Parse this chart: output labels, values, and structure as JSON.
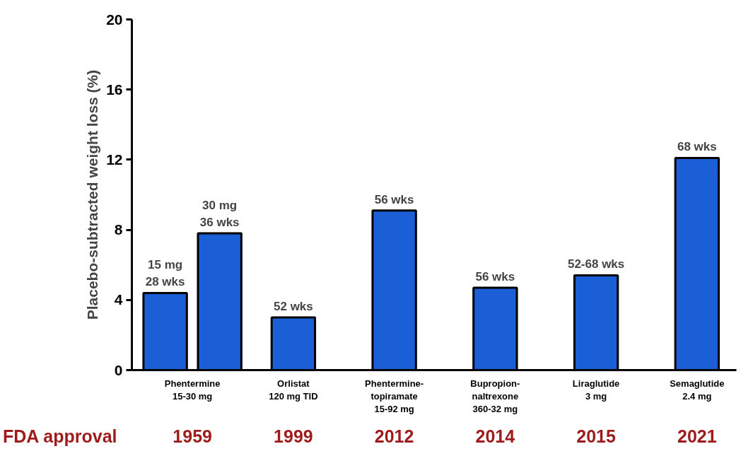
{
  "chart_data": {
    "type": "bar",
    "ylabel": "Placebo-subtracted weight loss (%)",
    "categories": [
      "Phentermine\n15-30 mg",
      "Orlistat\n120 mg TID",
      "Phentermine-\ntopiramate\n15-92 mg",
      "Bupropion-\nnaltrexone\n360-32 mg",
      "Liraglutide\n3 mg",
      "Semaglutide\n2.4 mg"
    ],
    "series": [
      {
        "color": "#1a5fd6",
        "values": [
          4.4,
          3.0,
          9.1,
          4.7,
          5.4,
          12.1
        ]
      },
      {
        "color": "#1a5fd6",
        "values": [
          7.8,
          null,
          null,
          null,
          null,
          null
        ]
      }
    ],
    "ylim": [
      0,
      20
    ],
    "yticks": [
      0,
      4,
      8,
      12,
      16,
      20
    ],
    "grid": false,
    "annotations": [
      "FDA approval",
      "1959",
      "1999",
      "2012",
      "2014",
      "2015",
      "2021",
      "15 mg\n28 wks",
      "30 mg\n36 wks",
      {
        "text": "52 wks",
        "x": "Orlistat\n120 mg TID",
        "y": 3.0
      },
      {
        "text": "56 wks",
        "x": "Phentermine-\ntopiramate\n15-92 mg",
        "y": 9.1
      },
      {
        "text": "56 wks",
        "x": "Bupropion-\nnaltrexone\n360-32 mg",
        "y": 4.7
      },
      {
        "text": "52-68 wks",
        "x": "Liraglutide\n3 mg",
        "y": 5.4
      },
      {
        "text": "68 wks",
        "x": "Semaglutide\n2.4 mg",
        "y": 12.1
      }
    ]
  }
}
